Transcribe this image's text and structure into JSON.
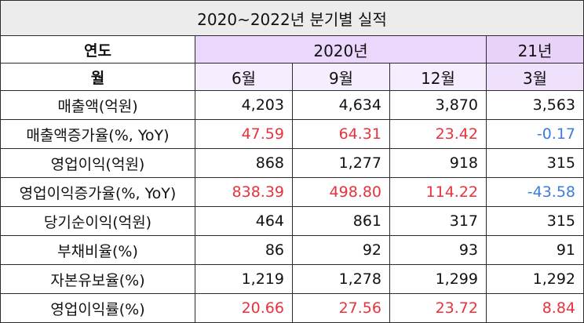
{
  "title": "2020~2022년 분기별 실적",
  "header": {
    "year_label": "연도",
    "month_label": "월",
    "year_2020": "2020년",
    "year_2021": "21년",
    "months": [
      "6월",
      "9월",
      "12월",
      "3월"
    ]
  },
  "colors": {
    "positive_growth": "#e8323c",
    "negative_growth": "#3b7dd8",
    "header_2020_year": "#ead7fb",
    "header_2021_year": "#e9d2f8",
    "header_2020_month": "#f6eeff",
    "header_2021_month": "#efe0fb",
    "title_background": "#ececec"
  },
  "rows": [
    {
      "label": "매출액(억원)",
      "values": [
        "4,203",
        "4,634",
        "3,870",
        "3,563"
      ]
    },
    {
      "label": "매출액증가율(%, YoY)",
      "values": [
        "47.59",
        "64.31",
        "23.42",
        "-0.17"
      ]
    },
    {
      "label": "영업이익(억원)",
      "values": [
        "868",
        "1,277",
        "918",
        "315"
      ]
    },
    {
      "label": "영업이익증가율(%, YoY)",
      "values": [
        "838.39",
        "498.80",
        "114.22",
        "-43.58"
      ]
    },
    {
      "label": "당기순이익(억원)",
      "values": [
        "464",
        "861",
        "317",
        "315"
      ]
    },
    {
      "label": "부채비율(%)",
      "values": [
        "86",
        "92",
        "93",
        "91"
      ]
    },
    {
      "label": "자본유보율(%)",
      "values": [
        "1,219",
        "1,278",
        "1,299",
        "1,292"
      ]
    },
    {
      "label": "영업이익률(%)",
      "values": [
        "20.66",
        "27.56",
        "23.72",
        "8.84"
      ]
    }
  ]
}
